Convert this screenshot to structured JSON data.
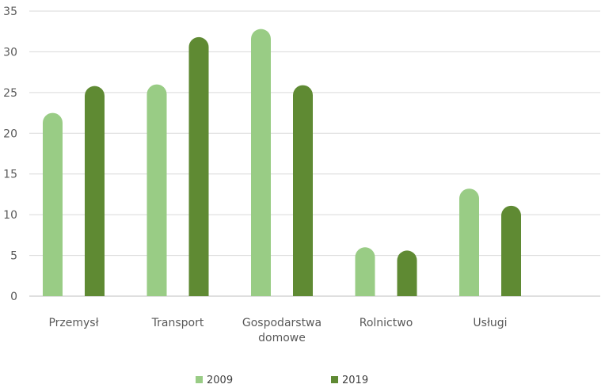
{
  "chart_data": {
    "type": "bar",
    "categories": [
      "Przemysł",
      "Transport",
      "Gospodarstwa domowe",
      "Rolnictwo",
      "Usługi"
    ],
    "series": [
      {
        "name": "2009",
        "color": "#99cc85",
        "values": [
          22.5,
          26.0,
          32.8,
          6.0,
          13.2
        ]
      },
      {
        "name": "2019",
        "color": "#5f8a33",
        "values": [
          25.8,
          31.8,
          25.9,
          5.6,
          11.1
        ]
      }
    ],
    "ylim": [
      0,
      35
    ],
    "yticks": [
      "0",
      "5",
      "10",
      "15",
      "20",
      "25",
      "30",
      "35"
    ],
    "grid": true,
    "legend_position": "bottom"
  }
}
